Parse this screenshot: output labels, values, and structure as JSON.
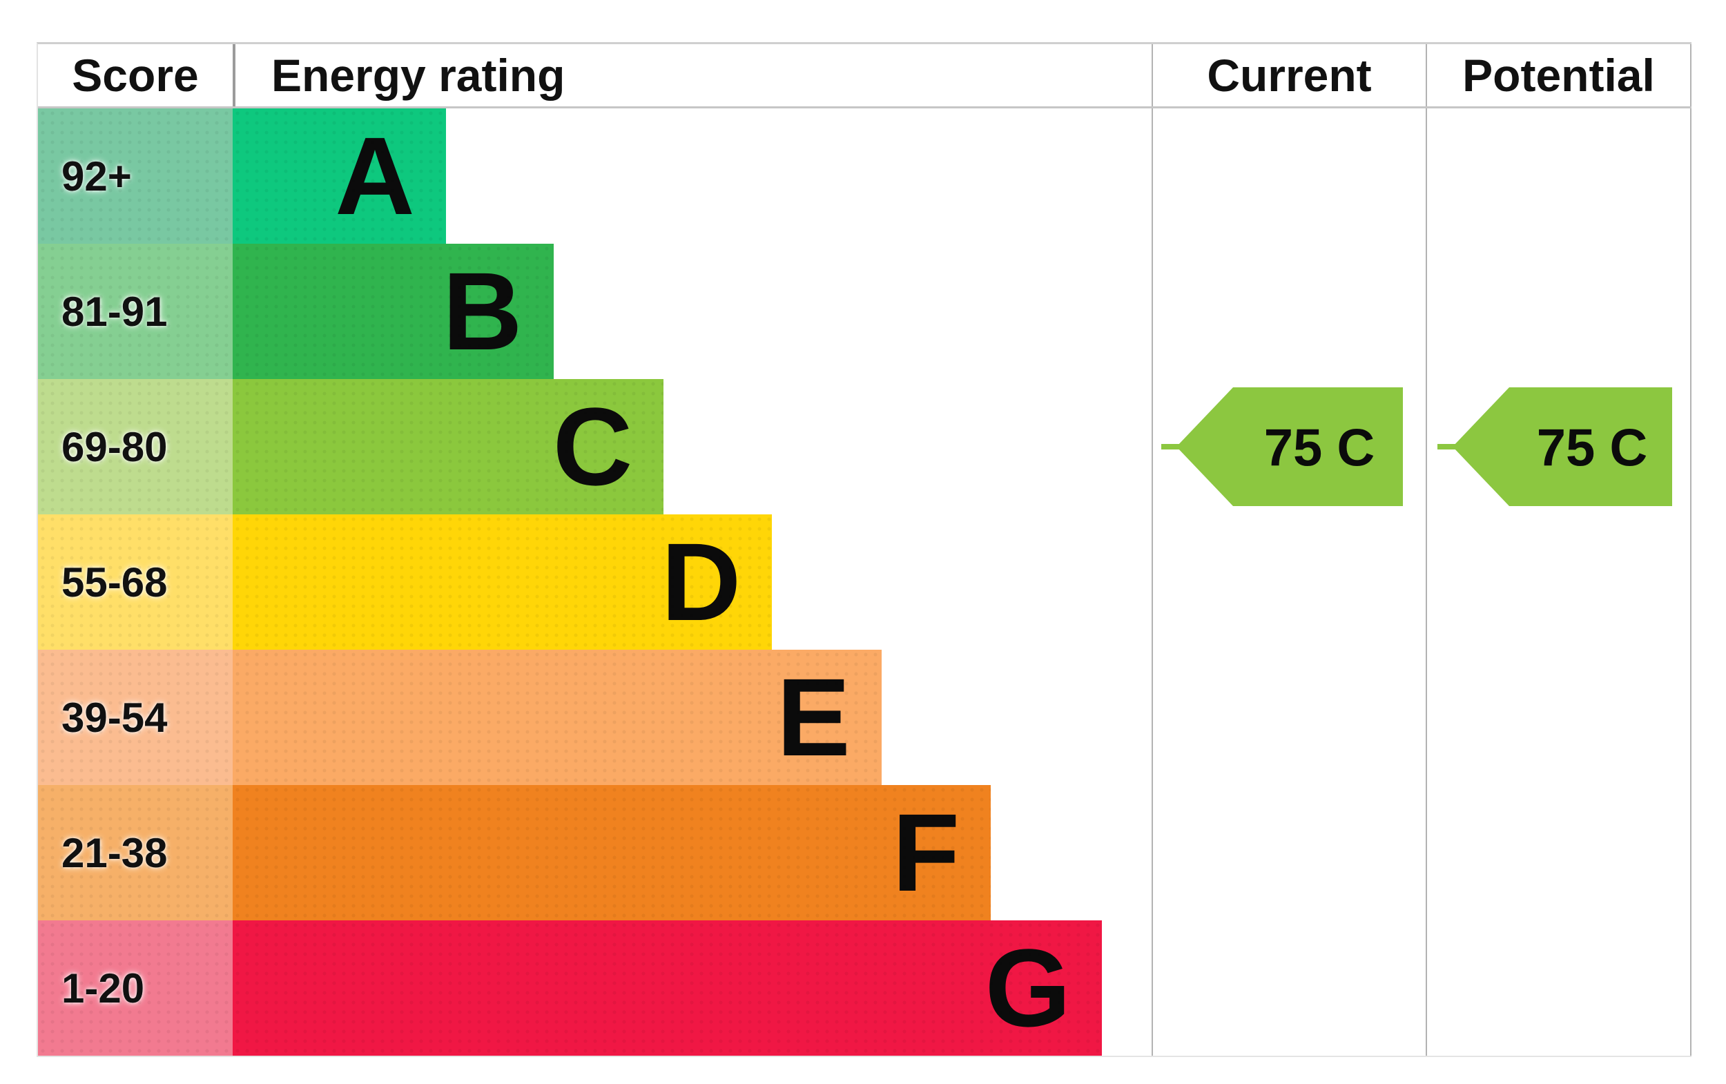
{
  "header": {
    "score": "Score",
    "energy_rating": "Energy rating",
    "current": "Current",
    "potential": "Potential"
  },
  "bands": [
    {
      "score": "92+",
      "letter": "A",
      "color": "#0ec87e",
      "tint": "#79c8a2",
      "width_pct": 23.2
    },
    {
      "score": "81-91",
      "letter": "B",
      "color": "#30b44e",
      "tint": "#85cf92",
      "width_pct": 34.9
    },
    {
      "score": "69-80",
      "letter": "C",
      "color": "#8bc83d",
      "tint": "#bedc8e",
      "width_pct": 46.9
    },
    {
      "score": "55-68",
      "letter": "D",
      "color": "#ffd607",
      "tint": "#ffdf68",
      "width_pct": 58.7
    },
    {
      "score": "39-54",
      "letter": "E",
      "color": "#fbaa65",
      "tint": "#fbbc90",
      "width_pct": 70.6
    },
    {
      "score": "21-38",
      "letter": "F",
      "color": "#f0821f",
      "tint": "#f6b068",
      "width_pct": 82.5
    },
    {
      "score": "1-20",
      "letter": "G",
      "color": "#f01744",
      "tint": "#f27a90",
      "width_pct": 94.6
    }
  ],
  "current": {
    "label": "75 C",
    "color": "#8cc740"
  },
  "potential": {
    "label": "75 C",
    "color": "#8cc740"
  },
  "chart_data": {
    "type": "bar",
    "title": "EPC energy rating chart",
    "categories": [
      "A",
      "B",
      "C",
      "D",
      "E",
      "F",
      "G"
    ],
    "score_ranges": [
      "92+",
      "81-91",
      "69-80",
      "55-68",
      "39-54",
      "21-38",
      "1-20"
    ],
    "bar_lengths_pct_of_rating_column": [
      23.2,
      34.9,
      46.9,
      58.7,
      70.6,
      82.5,
      94.6
    ],
    "band_colors": [
      "#0ec87e",
      "#30b44e",
      "#8bc83d",
      "#ffd607",
      "#fbaa65",
      "#f0821f",
      "#f01744"
    ],
    "score_cell_tints": [
      "#79c8a2",
      "#85cf92",
      "#bedc8e",
      "#ffdf68",
      "#fbbc90",
      "#f6b068",
      "#f27a90"
    ],
    "columns": [
      "Score",
      "Energy rating",
      "Current",
      "Potential"
    ],
    "current_rating": {
      "score": 75,
      "band": "C"
    },
    "potential_rating": {
      "score": 75,
      "band": "C"
    },
    "arrow_color": "#8cc740",
    "legend_position": "none",
    "grid": false
  }
}
